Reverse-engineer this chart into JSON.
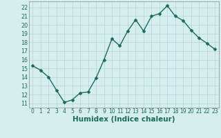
{
  "x": [
    0,
    1,
    2,
    3,
    4,
    5,
    6,
    7,
    8,
    9,
    10,
    11,
    12,
    13,
    14,
    15,
    16,
    17,
    18,
    19,
    20,
    21,
    22,
    23
  ],
  "y": [
    15.3,
    14.8,
    14.0,
    12.5,
    11.1,
    11.4,
    12.2,
    12.3,
    13.9,
    16.0,
    18.4,
    17.6,
    19.3,
    20.6,
    19.3,
    21.0,
    21.3,
    22.2,
    21.0,
    20.5,
    19.4,
    18.5,
    17.9,
    17.2
  ],
  "xlabel": "Humidex (Indice chaleur)",
  "ylabel_ticks": [
    11,
    12,
    13,
    14,
    15,
    16,
    17,
    18,
    19,
    20,
    21,
    22
  ],
  "ylim": [
    10.5,
    22.7
  ],
  "xlim": [
    -0.5,
    23.5
  ],
  "line_color": "#1a6b5a",
  "marker": "D",
  "marker_size": 2.5,
  "bg_color": "#d6eeee",
  "grid_color": "#b8d8d8",
  "tick_color": "#1a6b5a",
  "xlabel_fontsize": 7.5,
  "ytick_fontsize": 5.8,
  "xtick_fontsize": 5.5
}
